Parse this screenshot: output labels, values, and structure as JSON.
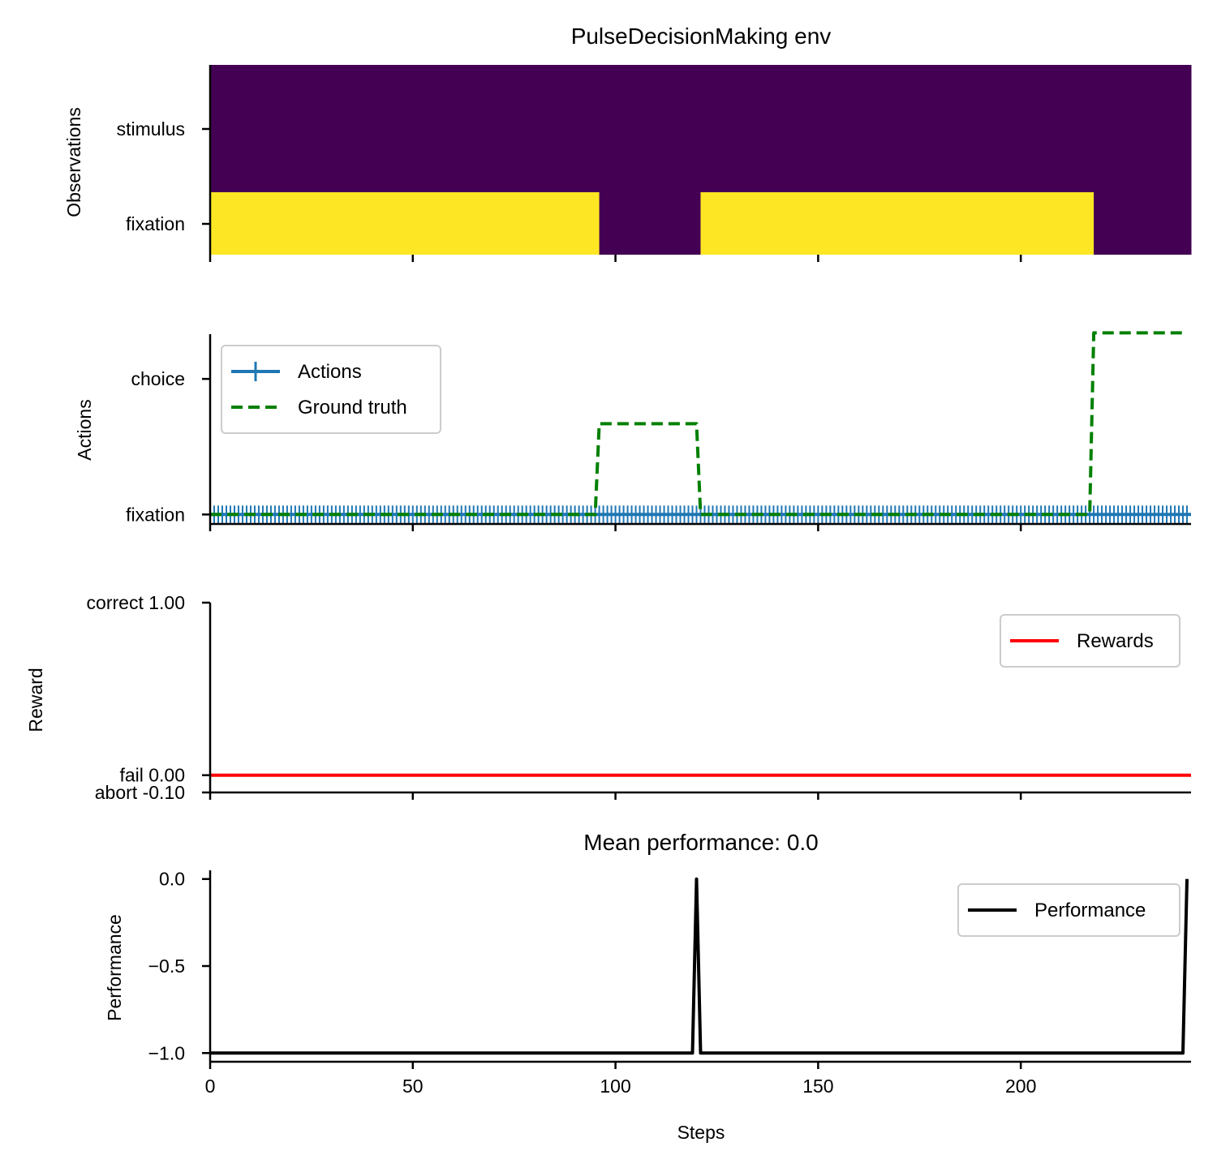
{
  "chart_data": [
    {
      "type": "heatmap",
      "title": "PulseDecisionMaking env",
      "ylabel": "Observations",
      "rows": [
        "stimulus",
        "fixation"
      ],
      "x_range": [
        0,
        242
      ],
      "colors": {
        "low": "#440154",
        "high": "#fde725"
      },
      "cells": [
        {
          "row": "stimulus",
          "segments": [
            {
              "x0": 0,
              "x1": 242,
              "value": 0
            }
          ]
        },
        {
          "row": "fixation",
          "segments": [
            {
              "x0": 0,
              "x1": 96,
              "value": 1
            },
            {
              "x0": 96,
              "x1": 121,
              "value": 0
            },
            {
              "x0": 121,
              "x1": 218,
              "value": 1
            },
            {
              "x0": 218,
              "x1": 242,
              "value": 0
            }
          ]
        }
      ]
    },
    {
      "type": "line",
      "ylabel": "Actions",
      "yticks": [
        {
          "value": 0,
          "label": "fixation"
        },
        {
          "value": 1,
          "label": "choice"
        }
      ],
      "ylim": [
        -0.07,
        1.33
      ],
      "legend": "upper-left",
      "series": [
        {
          "name": "Actions",
          "color": "#1f77b4",
          "style": "solid-markers",
          "x": [
            0,
            242
          ],
          "y": [
            0,
            0
          ]
        },
        {
          "name": "Ground truth",
          "color": "#008000",
          "style": "dashed",
          "x": [
            0,
            95,
            96,
            120,
            121,
            217,
            218,
            241
          ],
          "y": [
            0,
            0,
            0.67,
            0.67,
            0,
            0,
            1.34,
            1.34
          ]
        }
      ]
    },
    {
      "type": "line",
      "ylabel": "Reward",
      "yticks": [
        {
          "value": 1.0,
          "label": "correct 1.00"
        },
        {
          "value": 0.0,
          "label": "fail 0.00"
        },
        {
          "value": -0.1,
          "label": "abort -0.10"
        }
      ],
      "ylim": [
        -0.1,
        1.0
      ],
      "legend": "upper-right",
      "series": [
        {
          "name": "Rewards",
          "color": "#ff0000",
          "x": [
            0,
            242
          ],
          "y": [
            0,
            0
          ]
        }
      ]
    },
    {
      "type": "line",
      "title": "Mean performance: 0.0",
      "ylabel": "Performance",
      "xlabel": "Steps",
      "xticks": [
        0,
        50,
        100,
        150,
        200
      ],
      "yticks": [
        {
          "value": 0.0,
          "label": "0.0"
        },
        {
          "value": -0.5,
          "label": "−0.5"
        },
        {
          "value": -1.0,
          "label": "−1.0"
        }
      ],
      "ylim": [
        -1.05,
        0.05
      ],
      "legend": "upper-right",
      "series": [
        {
          "name": "Performance",
          "color": "#000000",
          "x": [
            0,
            119,
            120,
            121,
            240,
            241
          ],
          "y": [
            -1,
            -1,
            0,
            -1,
            -1,
            0
          ]
        }
      ]
    }
  ]
}
